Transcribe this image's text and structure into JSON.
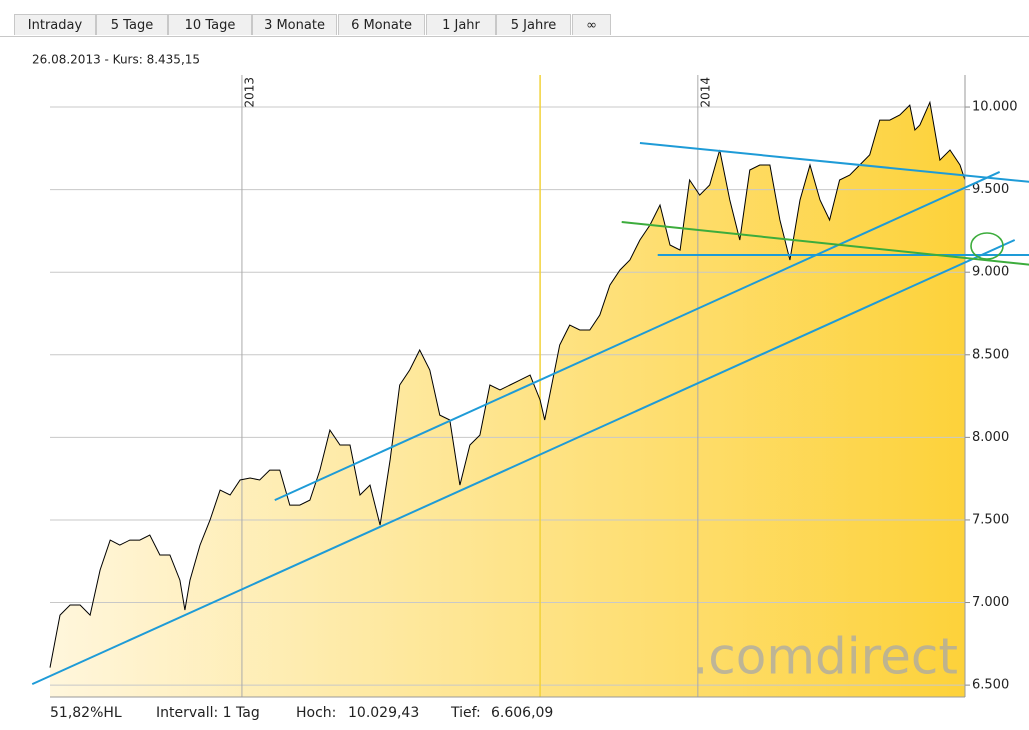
{
  "tabs": [
    "Intraday",
    "5 Tage",
    "10 Tage",
    "3 Monate",
    "6 Monate",
    "1 Jahr",
    "5 Jahre",
    "∞"
  ],
  "header": "26.08.2013  -  Kurs: 8.435,15",
  "footer": {
    "range": "51,82%HL",
    "interval": "Intervall: 1 Tag",
    "high_label": "Hoch:",
    "high": "10.029,43",
    "low_label": "Tief:",
    "low": "6.606,09"
  },
  "chart_data": {
    "type": "area",
    "watermark": ".comdirect",
    "x": [
      2012.579,
      2012.601,
      2012.623,
      2012.645,
      2012.667,
      2012.689,
      2012.711,
      2012.732,
      2012.754,
      2012.776,
      2012.798,
      2012.82,
      2012.842,
      2012.864,
      2012.875,
      2012.886,
      2012.908,
      2012.93,
      2012.952,
      2012.974,
      2012.996,
      2013.018,
      2013.039,
      2013.061,
      2013.083,
      2013.105,
      2013.127,
      2013.149,
      2013.171,
      2013.193,
      2013.215,
      2013.237,
      2013.259,
      2013.281,
      2013.303,
      2013.325,
      2013.346,
      2013.368,
      2013.39,
      2013.412,
      2013.434,
      2013.456,
      2013.478,
      2013.5,
      2013.522,
      2013.544,
      2013.566,
      2013.588,
      2013.61,
      2013.632,
      2013.654,
      2013.664,
      2013.675,
      2013.697,
      2013.719,
      2013.741,
      2013.763,
      2013.785,
      2013.807,
      2013.829,
      2013.851,
      2013.873,
      2013.895,
      2013.917,
      2013.939,
      2013.961,
      2013.982,
      2014.004,
      2014.026,
      2014.048,
      2014.07,
      2014.092,
      2014.114,
      2014.136,
      2014.158,
      2014.18,
      2014.202,
      2014.224,
      2014.246,
      2014.268,
      2014.289,
      2014.311,
      2014.333,
      2014.355,
      2014.377,
      2014.399,
      2014.421,
      2014.443,
      2014.465,
      2014.476,
      2014.487,
      2014.509,
      2014.531,
      2014.553,
      2014.575,
      2014.586
    ],
    "series": [
      {
        "color": "#000000",
        "values": [
          6606,
          6924,
          6985,
          6985,
          6924,
          7197,
          7378,
          7348,
          7378,
          7378,
          7409,
          7288,
          7288,
          7136,
          6955,
          7136,
          7348,
          7499,
          7681,
          7651,
          7742,
          7754,
          7742,
          7802,
          7802,
          7590,
          7590,
          7620,
          7802,
          8044,
          7954,
          7954,
          7651,
          7711,
          7469,
          7863,
          8317,
          8408,
          8529,
          8408,
          8135,
          8105,
          7711,
          7954,
          8014,
          8317,
          8287,
          8317,
          8347,
          8377,
          8226,
          8105,
          8256,
          8559,
          8680,
          8650,
          8650,
          8741,
          8922,
          9013,
          9074,
          9195,
          9286,
          9407,
          9165,
          9134,
          9558,
          9467,
          9528,
          9740,
          9437,
          9195,
          9619,
          9649,
          9649,
          9316,
          9074,
          9437,
          9649,
          9437,
          9316,
          9558,
          9588,
          9649,
          9710,
          9921,
          9921,
          9952,
          10012,
          9861,
          9891,
          10029,
          9679,
          9740,
          9649,
          9558
        ]
      }
    ],
    "fill_colors": [
      "#fff6dc",
      "#fdd23a"
    ],
    "xlim": [
      2012.579,
      2014.586
    ],
    "xticks": [
      2013,
      2014
    ],
    "cursor_x": 2013.654,
    "ylim": [
      6428,
      10194
    ],
    "yticks": [
      {
        "value": 6500,
        "label": "6.500"
      },
      {
        "value": 7000,
        "label": "7.000"
      },
      {
        "value": 7500,
        "label": "7.500"
      },
      {
        "value": 8000,
        "label": "8.000"
      },
      {
        "value": 8500,
        "label": "8.500"
      },
      {
        "value": 9000,
        "label": "9.000"
      },
      {
        "value": 9500,
        "label": "9.500"
      },
      {
        "value": 10000,
        "label": "10.000"
      }
    ],
    "grid": true,
    "trendlines": [
      {
        "color": "#1e9bd7",
        "points": [
          [
            2012.54,
            6506
          ],
          [
            2014.695,
            9195
          ]
        ]
      },
      {
        "color": "#1e9bd7",
        "points": [
          [
            2013.072,
            7620
          ],
          [
            2014.662,
            9607
          ]
        ]
      },
      {
        "color": "#1e9bd7",
        "points": [
          [
            2013.873,
            9782
          ],
          [
            2014.732,
            9546
          ]
        ]
      },
      {
        "color": "#1e9bd7",
        "points": [
          [
            2013.912,
            9104
          ],
          [
            2014.732,
            9104
          ]
        ]
      },
      {
        "color": "#3cac3c",
        "points": [
          [
            2013.833,
            9304
          ],
          [
            2014.732,
            9044
          ]
        ]
      }
    ]
  }
}
